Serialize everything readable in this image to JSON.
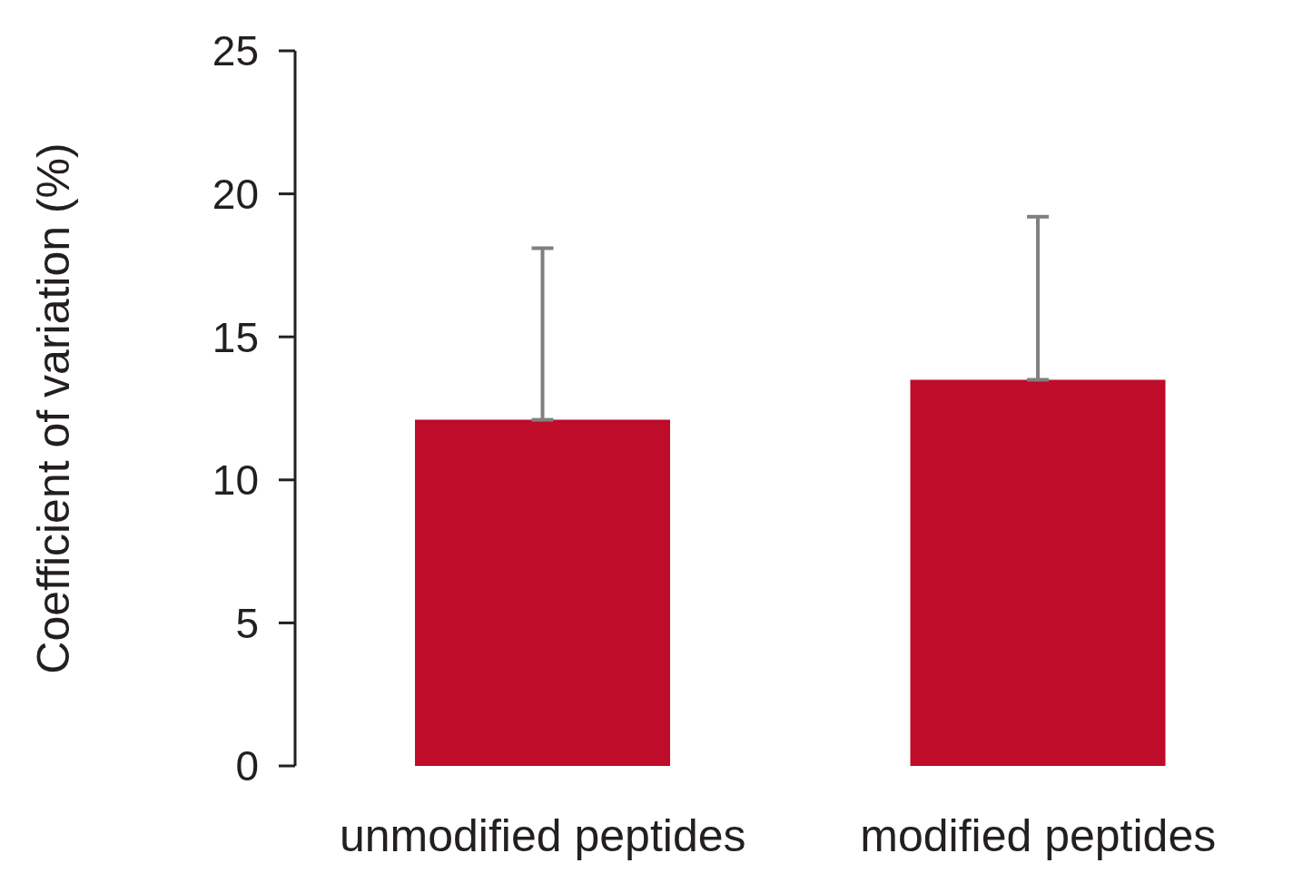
{
  "chart_data": {
    "type": "bar",
    "ylabel": "Coefficient of variation (%)",
    "categories": [
      "unmodified peptides",
      "modified peptides"
    ],
    "values": [
      12.1,
      13.5
    ],
    "color": "#be0c2a",
    "errors": [
      [
        12.1,
        18.1
      ],
      [
        13.5,
        19.2
      ]
    ],
    "ylim": [
      0,
      25
    ],
    "yticks": [
      0,
      5,
      10,
      15,
      20,
      25
    ]
  }
}
